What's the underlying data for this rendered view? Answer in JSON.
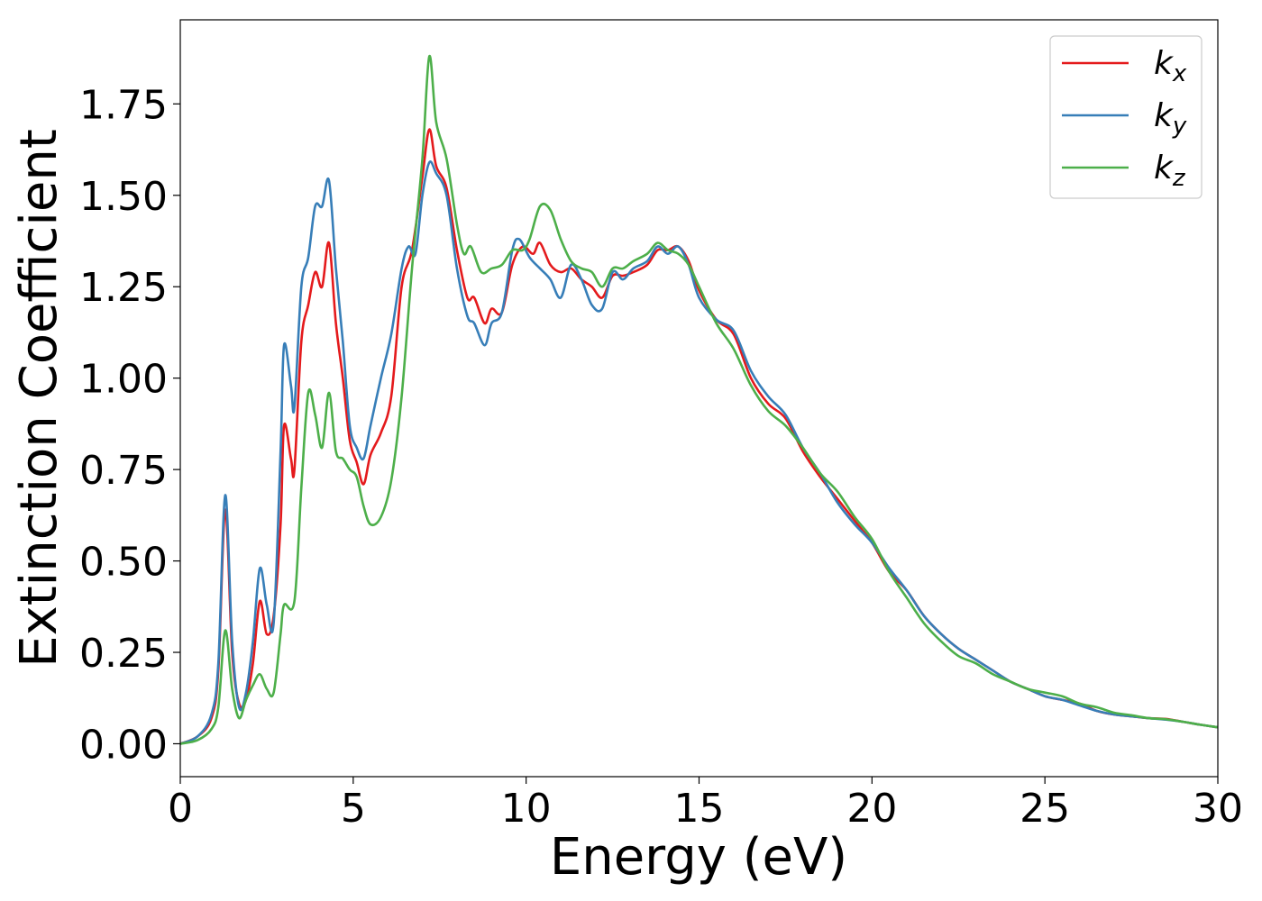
{
  "chart_data": {
    "type": "line",
    "title": "",
    "xlabel": "Energy (eV)",
    "ylabel": "Extinction Coefficient",
    "xlim": [
      0,
      30
    ],
    "ylim": [
      -0.09,
      1.98
    ],
    "xticks": [
      "0",
      "5",
      "10",
      "15",
      "20",
      "25",
      "30"
    ],
    "yticks": [
      "0.00",
      "0.25",
      "0.50",
      "0.75",
      "1.00",
      "1.25",
      "1.50",
      "1.75"
    ],
    "grid": false,
    "legend_position": "top-right",
    "series": [
      {
        "name": "k_x",
        "label_base": "k",
        "label_sub": "x",
        "color": "#e41a1c",
        "points": [
          [
            0,
            0
          ],
          [
            0.5,
            0.02
          ],
          [
            0.9,
            0.07
          ],
          [
            1.1,
            0.2
          ],
          [
            1.3,
            0.64
          ],
          [
            1.5,
            0.25
          ],
          [
            1.7,
            0.11
          ],
          [
            1.9,
            0.12
          ],
          [
            2.1,
            0.22
          ],
          [
            2.3,
            0.39
          ],
          [
            2.5,
            0.3
          ],
          [
            2.7,
            0.35
          ],
          [
            2.9,
            0.6
          ],
          [
            3.0,
            0.87
          ],
          [
            3.2,
            0.78
          ],
          [
            3.3,
            0.75
          ],
          [
            3.5,
            1.1
          ],
          [
            3.7,
            1.2
          ],
          [
            3.9,
            1.29
          ],
          [
            4.1,
            1.25
          ],
          [
            4.3,
            1.37
          ],
          [
            4.5,
            1.15
          ],
          [
            4.7,
            1.0
          ],
          [
            4.9,
            0.83
          ],
          [
            5.1,
            0.77
          ],
          [
            5.3,
            0.71
          ],
          [
            5.5,
            0.79
          ],
          [
            5.8,
            0.85
          ],
          [
            6.1,
            0.95
          ],
          [
            6.4,
            1.25
          ],
          [
            6.7,
            1.35
          ],
          [
            7.0,
            1.55
          ],
          [
            7.2,
            1.68
          ],
          [
            7.4,
            1.58
          ],
          [
            7.7,
            1.52
          ],
          [
            8.0,
            1.35
          ],
          [
            8.3,
            1.22
          ],
          [
            8.5,
            1.22
          ],
          [
            8.8,
            1.15
          ],
          [
            9.0,
            1.19
          ],
          [
            9.3,
            1.18
          ],
          [
            9.6,
            1.31
          ],
          [
            9.9,
            1.36
          ],
          [
            10.2,
            1.34
          ],
          [
            10.4,
            1.37
          ],
          [
            10.7,
            1.31
          ],
          [
            11.0,
            1.29
          ],
          [
            11.3,
            1.3
          ],
          [
            11.6,
            1.27
          ],
          [
            11.9,
            1.25
          ],
          [
            12.2,
            1.22
          ],
          [
            12.5,
            1.28
          ],
          [
            12.8,
            1.28
          ],
          [
            13.1,
            1.29
          ],
          [
            13.5,
            1.31
          ],
          [
            13.8,
            1.35
          ],
          [
            14.1,
            1.35
          ],
          [
            14.4,
            1.36
          ],
          [
            14.7,
            1.32
          ],
          [
            15.0,
            1.24
          ],
          [
            15.5,
            1.16
          ],
          [
            16.0,
            1.12
          ],
          [
            16.5,
            1.0
          ],
          [
            17.0,
            0.93
          ],
          [
            17.5,
            0.89
          ],
          [
            18.0,
            0.8
          ],
          [
            18.5,
            0.73
          ],
          [
            19.0,
            0.67
          ],
          [
            19.5,
            0.61
          ],
          [
            20.0,
            0.55
          ],
          [
            20.5,
            0.47
          ],
          [
            21.0,
            0.42
          ],
          [
            21.5,
            0.35
          ],
          [
            22.0,
            0.3
          ],
          [
            22.5,
            0.26
          ],
          [
            23.0,
            0.23
          ],
          [
            23.5,
            0.2
          ],
          [
            24.0,
            0.17
          ],
          [
            24.5,
            0.15
          ],
          [
            25.0,
            0.13
          ],
          [
            25.5,
            0.12
          ],
          [
            26.0,
            0.11
          ],
          [
            26.5,
            0.09
          ],
          [
            27.0,
            0.08
          ],
          [
            27.5,
            0.075
          ],
          [
            28.0,
            0.07
          ],
          [
            28.5,
            0.068
          ],
          [
            29.0,
            0.06
          ],
          [
            29.5,
            0.052
          ],
          [
            30.0,
            0.045
          ]
        ]
      },
      {
        "name": "k_y",
        "label_base": "k",
        "label_sub": "y",
        "color": "#377eb8",
        "points": [
          [
            0,
            0
          ],
          [
            0.5,
            0.02
          ],
          [
            0.9,
            0.08
          ],
          [
            1.1,
            0.22
          ],
          [
            1.3,
            0.68
          ],
          [
            1.5,
            0.28
          ],
          [
            1.7,
            0.1
          ],
          [
            1.9,
            0.14
          ],
          [
            2.1,
            0.28
          ],
          [
            2.3,
            0.48
          ],
          [
            2.5,
            0.38
          ],
          [
            2.7,
            0.33
          ],
          [
            2.9,
            0.8
          ],
          [
            3.0,
            1.09
          ],
          [
            3.2,
            0.98
          ],
          [
            3.3,
            0.92
          ],
          [
            3.5,
            1.25
          ],
          [
            3.7,
            1.33
          ],
          [
            3.9,
            1.47
          ],
          [
            4.1,
            1.47
          ],
          [
            4.3,
            1.54
          ],
          [
            4.5,
            1.3
          ],
          [
            4.7,
            1.1
          ],
          [
            4.9,
            0.87
          ],
          [
            5.1,
            0.81
          ],
          [
            5.3,
            0.78
          ],
          [
            5.5,
            0.87
          ],
          [
            5.8,
            1.0
          ],
          [
            6.1,
            1.12
          ],
          [
            6.4,
            1.3
          ],
          [
            6.6,
            1.36
          ],
          [
            6.8,
            1.34
          ],
          [
            7.0,
            1.5
          ],
          [
            7.2,
            1.59
          ],
          [
            7.4,
            1.56
          ],
          [
            7.7,
            1.5
          ],
          [
            8.0,
            1.3
          ],
          [
            8.3,
            1.17
          ],
          [
            8.5,
            1.15
          ],
          [
            8.8,
            1.09
          ],
          [
            9.0,
            1.15
          ],
          [
            9.3,
            1.18
          ],
          [
            9.6,
            1.35
          ],
          [
            9.8,
            1.38
          ],
          [
            10.1,
            1.33
          ],
          [
            10.4,
            1.3
          ],
          [
            10.7,
            1.27
          ],
          [
            11.0,
            1.22
          ],
          [
            11.3,
            1.31
          ],
          [
            11.6,
            1.27
          ],
          [
            11.9,
            1.2
          ],
          [
            12.2,
            1.19
          ],
          [
            12.5,
            1.29
          ],
          [
            12.8,
            1.27
          ],
          [
            13.1,
            1.3
          ],
          [
            13.5,
            1.32
          ],
          [
            13.8,
            1.36
          ],
          [
            14.1,
            1.34
          ],
          [
            14.4,
            1.36
          ],
          [
            14.7,
            1.31
          ],
          [
            15.0,
            1.22
          ],
          [
            15.5,
            1.16
          ],
          [
            16.0,
            1.13
          ],
          [
            16.5,
            1.02
          ],
          [
            17.0,
            0.95
          ],
          [
            17.5,
            0.9
          ],
          [
            18.0,
            0.81
          ],
          [
            18.5,
            0.74
          ],
          [
            19.0,
            0.66
          ],
          [
            19.5,
            0.6
          ],
          [
            20.0,
            0.55
          ],
          [
            20.5,
            0.48
          ],
          [
            21.0,
            0.42
          ],
          [
            21.5,
            0.35
          ],
          [
            22.0,
            0.3
          ],
          [
            22.5,
            0.26
          ],
          [
            23.0,
            0.23
          ],
          [
            23.5,
            0.2
          ],
          [
            24.0,
            0.17
          ],
          [
            24.5,
            0.15
          ],
          [
            25.0,
            0.13
          ],
          [
            25.5,
            0.12
          ],
          [
            26.0,
            0.105
          ],
          [
            26.5,
            0.09
          ],
          [
            27.0,
            0.08
          ],
          [
            27.5,
            0.075
          ],
          [
            28.0,
            0.07
          ],
          [
            28.5,
            0.066
          ],
          [
            29.0,
            0.06
          ],
          [
            29.5,
            0.052
          ],
          [
            30.0,
            0.045
          ]
        ]
      },
      {
        "name": "k_z",
        "label_base": "k",
        "label_sub": "z",
        "color": "#4daf4a",
        "points": [
          [
            0,
            0
          ],
          [
            0.5,
            0.01
          ],
          [
            0.9,
            0.04
          ],
          [
            1.1,
            0.1
          ],
          [
            1.3,
            0.31
          ],
          [
            1.5,
            0.15
          ],
          [
            1.7,
            0.07
          ],
          [
            1.9,
            0.12
          ],
          [
            2.1,
            0.16
          ],
          [
            2.3,
            0.19
          ],
          [
            2.5,
            0.15
          ],
          [
            2.7,
            0.14
          ],
          [
            2.9,
            0.3
          ],
          [
            3.0,
            0.38
          ],
          [
            3.3,
            0.39
          ],
          [
            3.5,
            0.7
          ],
          [
            3.7,
            0.96
          ],
          [
            3.9,
            0.9
          ],
          [
            4.1,
            0.81
          ],
          [
            4.3,
            0.96
          ],
          [
            4.5,
            0.8
          ],
          [
            4.7,
            0.78
          ],
          [
            4.9,
            0.75
          ],
          [
            5.1,
            0.73
          ],
          [
            5.3,
            0.65
          ],
          [
            5.5,
            0.6
          ],
          [
            5.8,
            0.62
          ],
          [
            6.1,
            0.72
          ],
          [
            6.4,
            0.95
          ],
          [
            6.7,
            1.3
          ],
          [
            7.0,
            1.6
          ],
          [
            7.2,
            1.88
          ],
          [
            7.4,
            1.7
          ],
          [
            7.7,
            1.6
          ],
          [
            8.0,
            1.42
          ],
          [
            8.2,
            1.34
          ],
          [
            8.4,
            1.36
          ],
          [
            8.7,
            1.29
          ],
          [
            9.0,
            1.3
          ],
          [
            9.3,
            1.31
          ],
          [
            9.6,
            1.35
          ],
          [
            9.9,
            1.35
          ],
          [
            10.1,
            1.38
          ],
          [
            10.4,
            1.47
          ],
          [
            10.7,
            1.46
          ],
          [
            11.0,
            1.38
          ],
          [
            11.3,
            1.32
          ],
          [
            11.6,
            1.3
          ],
          [
            11.9,
            1.29
          ],
          [
            12.2,
            1.25
          ],
          [
            12.5,
            1.3
          ],
          [
            12.8,
            1.3
          ],
          [
            13.1,
            1.32
          ],
          [
            13.5,
            1.34
          ],
          [
            13.8,
            1.37
          ],
          [
            14.1,
            1.35
          ],
          [
            14.4,
            1.34
          ],
          [
            14.7,
            1.31
          ],
          [
            15.0,
            1.25
          ],
          [
            15.5,
            1.15
          ],
          [
            16.0,
            1.08
          ],
          [
            16.5,
            0.98
          ],
          [
            17.0,
            0.91
          ],
          [
            17.5,
            0.87
          ],
          [
            18.0,
            0.81
          ],
          [
            18.5,
            0.74
          ],
          [
            19.0,
            0.69
          ],
          [
            19.5,
            0.62
          ],
          [
            20.0,
            0.56
          ],
          [
            20.5,
            0.47
          ],
          [
            21.0,
            0.4
          ],
          [
            21.5,
            0.33
          ],
          [
            22.0,
            0.28
          ],
          [
            22.5,
            0.24
          ],
          [
            23.0,
            0.22
          ],
          [
            23.5,
            0.19
          ],
          [
            24.0,
            0.17
          ],
          [
            24.5,
            0.15
          ],
          [
            25.0,
            0.14
          ],
          [
            25.5,
            0.13
          ],
          [
            26.0,
            0.11
          ],
          [
            26.5,
            0.1
          ],
          [
            27.0,
            0.085
          ],
          [
            27.5,
            0.078
          ],
          [
            28.0,
            0.07
          ],
          [
            28.5,
            0.067
          ],
          [
            29.0,
            0.06
          ],
          [
            29.5,
            0.052
          ],
          [
            30.0,
            0.045
          ]
        ]
      }
    ]
  }
}
